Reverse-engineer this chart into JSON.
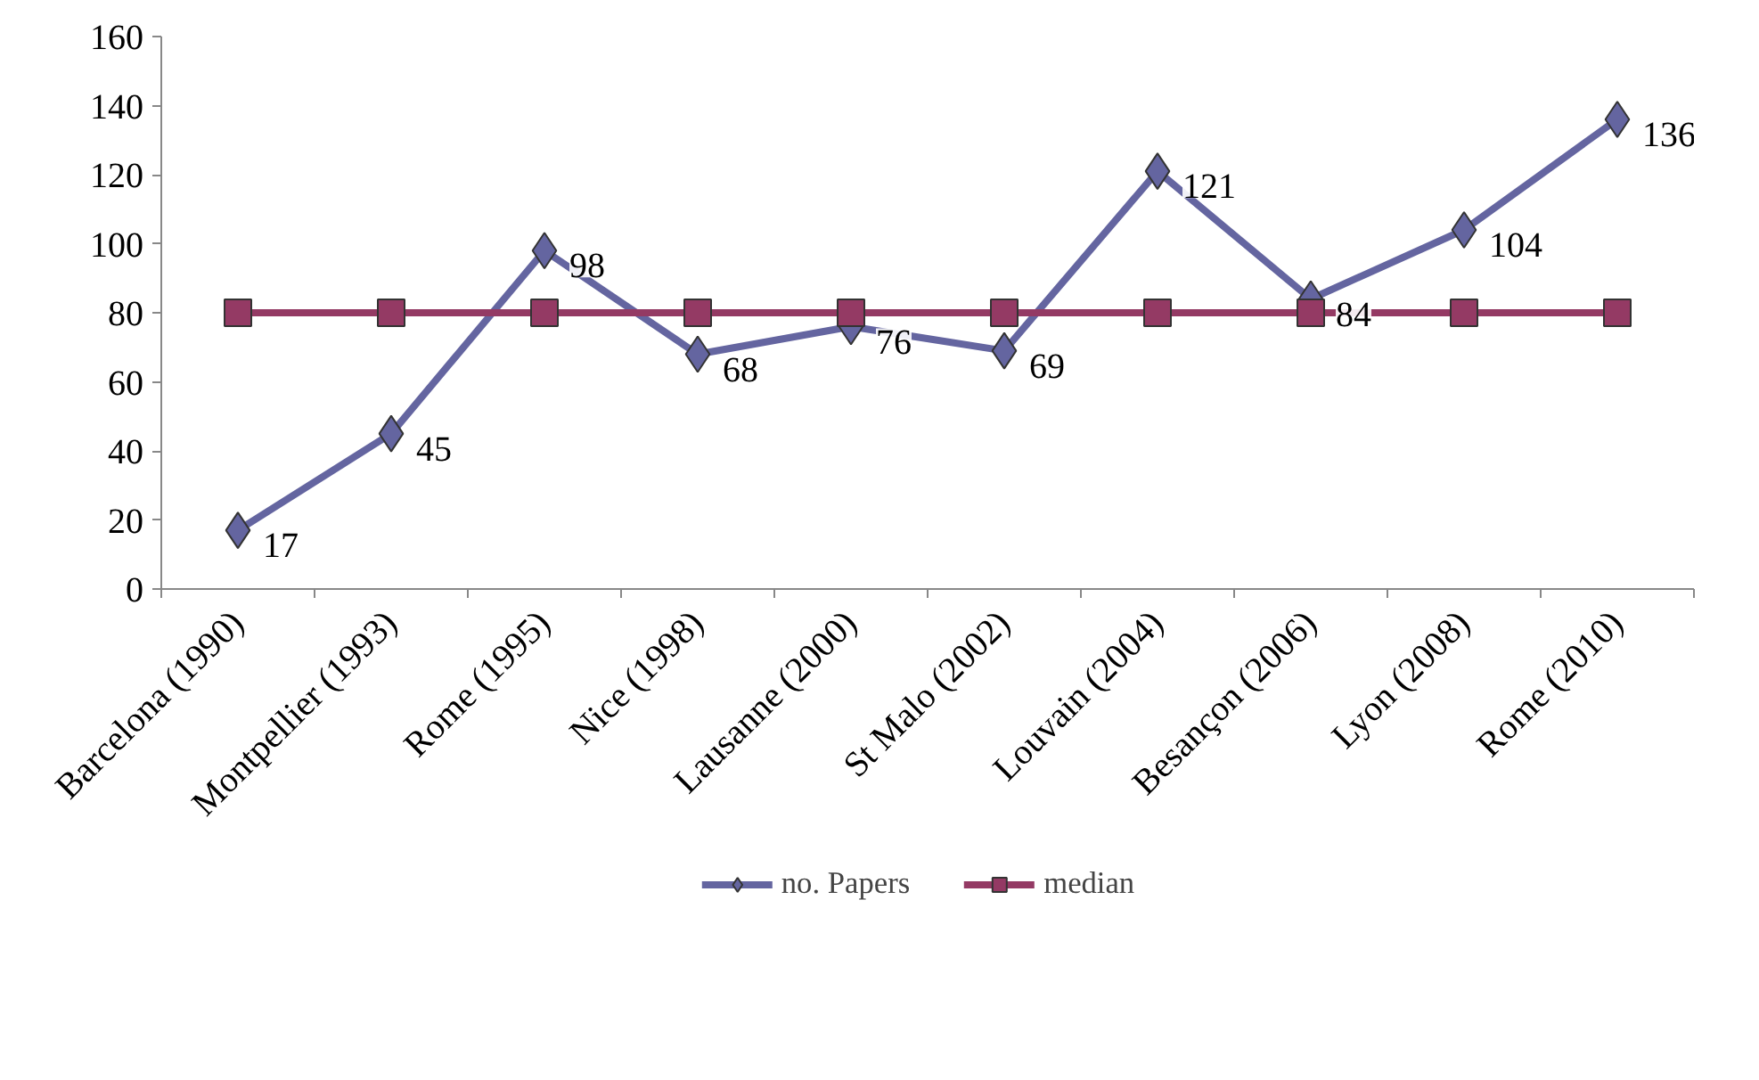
{
  "chart_data": {
    "type": "line",
    "categories": [
      "Barcelona (1990)",
      "Montpellier (1993)",
      "Rome (1995)",
      "Nice (1998)",
      "Lausanne (2000)",
      "St Malo (2002)",
      "Louvain (2004)",
      "Besançon (2006)",
      "Lyon (2008)",
      "Rome (2010)"
    ],
    "series": [
      {
        "name": "no. Papers",
        "color": "#6465a0",
        "marker": "diamond",
        "values": [
          17,
          45,
          98,
          68,
          76,
          69,
          121,
          84,
          104,
          136
        ],
        "value_labels": [
          "17",
          "45",
          "98",
          "68",
          "76",
          "69",
          "121",
          "84",
          "104",
          "136"
        ]
      },
      {
        "name": "median",
        "color": "#943a64",
        "marker": "square",
        "values": [
          80,
          80,
          80,
          80,
          80,
          80,
          80,
          80,
          80,
          80
        ]
      }
    ],
    "ylim": [
      0,
      160
    ],
    "yticks": [
      0,
      20,
      40,
      60,
      80,
      100,
      120,
      140,
      160
    ],
    "grid": false,
    "legend": "bottom"
  }
}
